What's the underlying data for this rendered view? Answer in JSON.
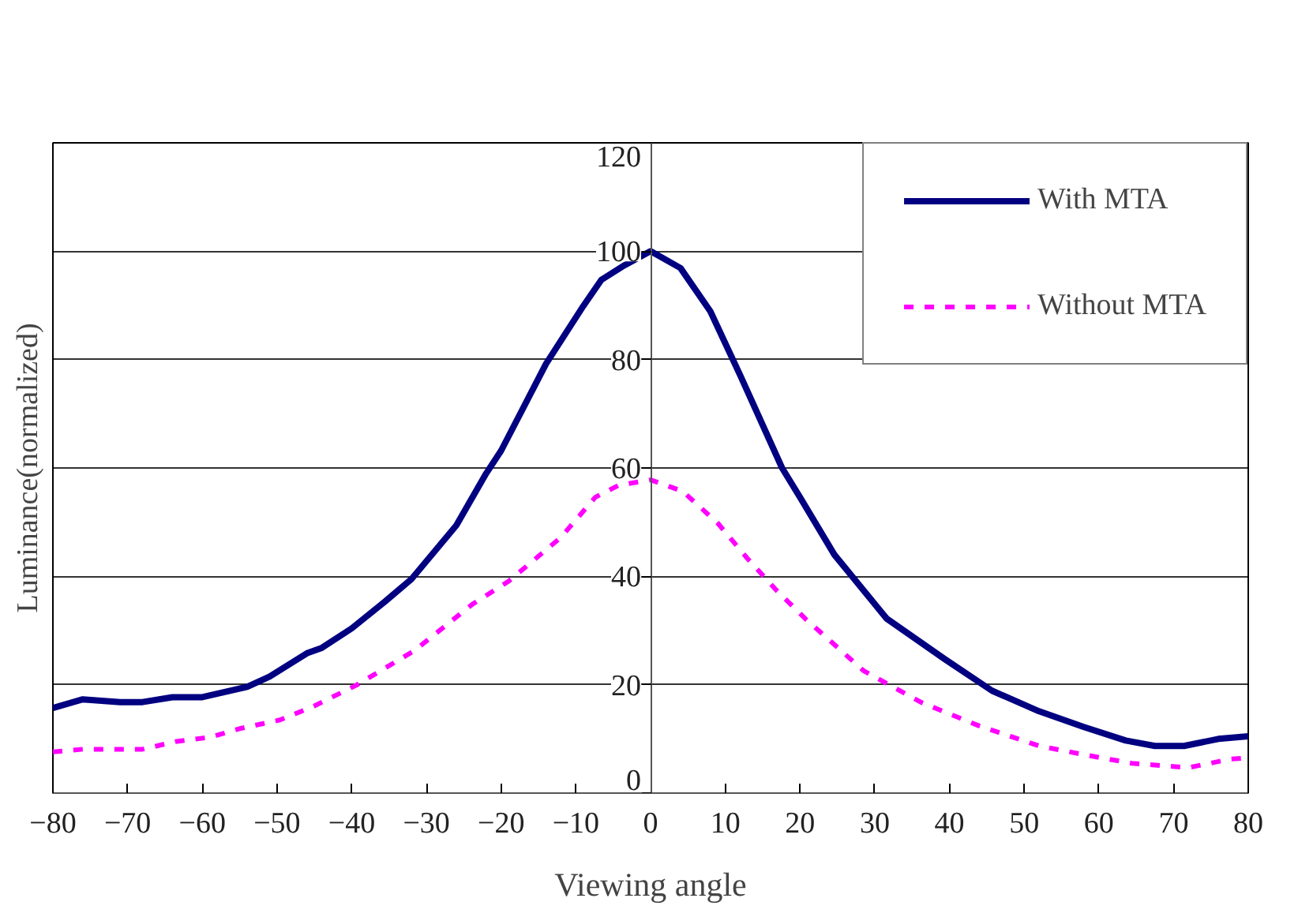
{
  "chart_data": {
    "type": "line",
    "xlabel": "Viewing angle",
    "ylabel": "Luminance(normalized)",
    "xlim": [
      -80,
      80
    ],
    "xticks": [
      -80,
      -70,
      -60,
      -50,
      -40,
      -30,
      -20,
      -10,
      0,
      10,
      20,
      30,
      40,
      50,
      60,
      70,
      80
    ],
    "ylim": [
      0,
      120
    ],
    "yticks": [
      0,
      20,
      40,
      60,
      80,
      100,
      120
    ],
    "grid": "y",
    "legend": "top right",
    "series": [
      {
        "name": "With MTA",
        "color": "#000080",
        "line_style": "solid",
        "x": [
          -80,
          -76,
          -71,
          -68,
          -64,
          -60,
          -54,
          -51,
          -46,
          -44,
          -40,
          -35.5,
          -32,
          -26,
          -22,
          -20,
          -14,
          -9,
          -6.6,
          -3.5,
          0,
          4,
          8,
          12,
          17.6,
          20,
          24.6,
          31.6,
          39.4,
          45.7,
          52,
          58,
          63.6,
          67.5,
          71.4,
          76,
          80
        ],
        "values": [
          15.7,
          17.3,
          16.8,
          16.8,
          17.7,
          17.7,
          19.6,
          21.5,
          25.8,
          26.8,
          30.4,
          35.4,
          39.5,
          49.4,
          59,
          63.2,
          79.2,
          89.9,
          94.7,
          97.4,
          100,
          96.9,
          88.9,
          77.1,
          60,
          54.6,
          44,
          32.2,
          24.7,
          18.9,
          15.1,
          12.2,
          9.7,
          8.7,
          8.7,
          10,
          10.5
        ]
      },
      {
        "name": "Without MTA",
        "color": "#ff00ff",
        "line_style": "dashed",
        "x": [
          -80,
          -76,
          -68,
          -63.6,
          -59,
          -55,
          -49.6,
          -45,
          -39.4,
          -31.6,
          -23.8,
          -19,
          -12,
          -7.4,
          -4.3,
          0,
          4.3,
          9,
          12.9,
          16.8,
          20.7,
          28.5,
          36.3,
          44,
          52,
          58,
          64.4,
          72,
          77.7,
          80
        ],
        "values": [
          7.6,
          8.1,
          8.1,
          9.5,
          10.3,
          11.9,
          13.5,
          16.1,
          19.9,
          26.3,
          34.9,
          39.1,
          47.2,
          54.6,
          56.8,
          57.8,
          55.7,
          49.8,
          43.4,
          37.5,
          32.2,
          22.6,
          16.7,
          12.4,
          8.7,
          7.1,
          5.5,
          4.7,
          6.3,
          6.5
        ]
      }
    ]
  }
}
